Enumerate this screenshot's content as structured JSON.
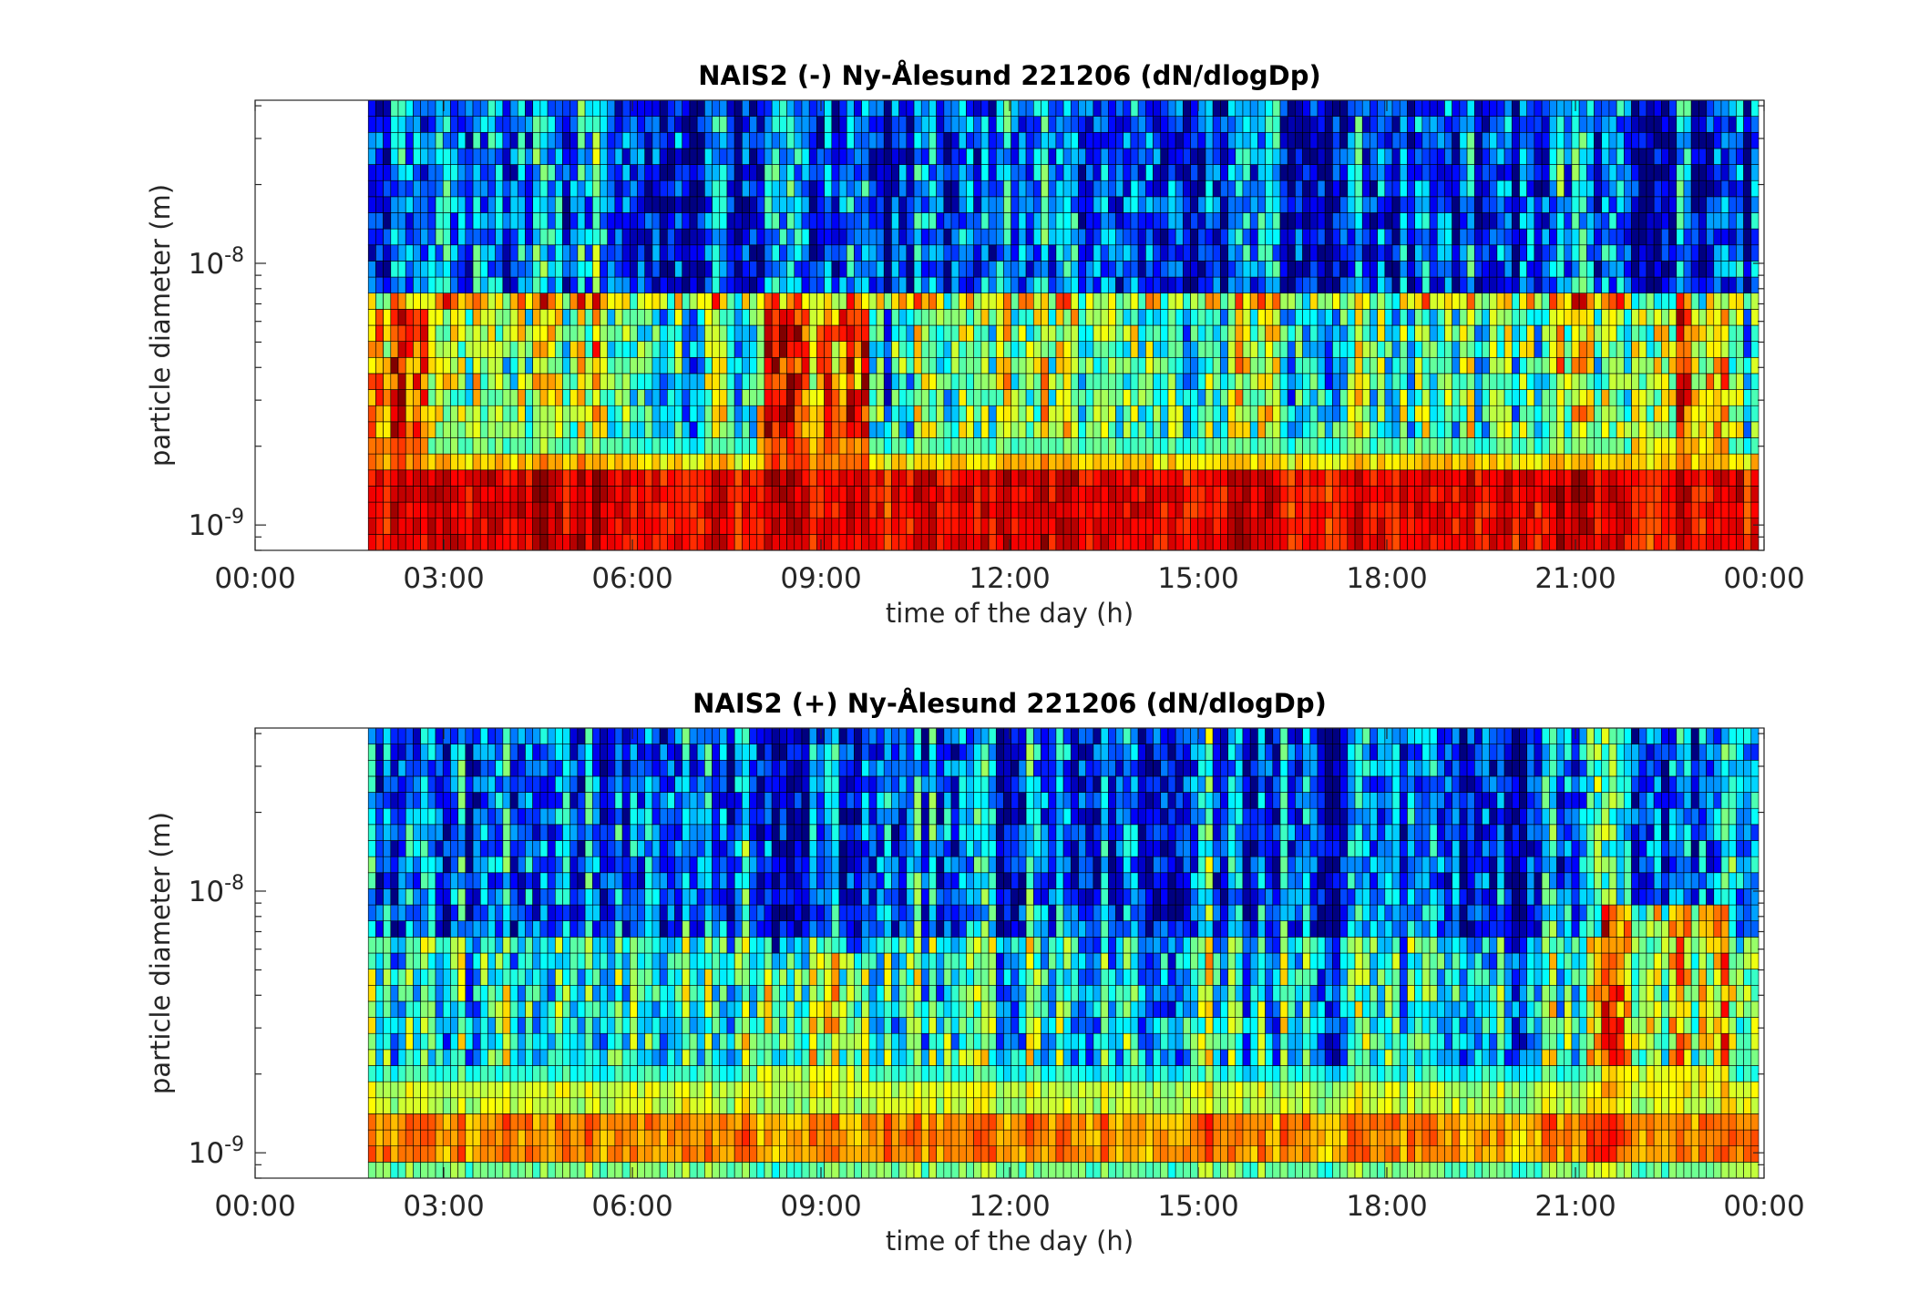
{
  "chart_data": [
    {
      "type": "heatmap",
      "title": "NAIS2 (-) Ny-Ålesund 221206 (dN/dlogDp)",
      "xlabel": "time of the day (h)",
      "ylabel": "particle diameter (m)",
      "x_ticks": [
        "00:00",
        "03:00",
        "06:00",
        "09:00",
        "12:00",
        "15:00",
        "18:00",
        "21:00",
        "00:00"
      ],
      "y_ticks": [
        {
          "value": 1e-09,
          "base": "10",
          "exp": "-9"
        },
        {
          "value": 1e-08,
          "base": "10",
          "exp": "-8"
        }
      ],
      "xlim_hours": [
        0,
        24
      ],
      "ylim": [
        8e-10,
        4.2e-08
      ],
      "y_scale": "log",
      "data_start_hour": 1.8,
      "colormap": "jet",
      "bands": [
        {
          "d_min": 8e-10,
          "d_max": 1.55e-09,
          "level": 0.88
        },
        {
          "d_min": 1.55e-09,
          "d_max": 2e-09,
          "level": 0.66
        },
        {
          "d_min": 2e-09,
          "d_max": 6.5e-09,
          "level": 0.45
        },
        {
          "d_min": 6.5e-09,
          "d_max": 8e-09,
          "level": 0.6
        },
        {
          "d_min": 8e-09,
          "d_max": 4.2e-08,
          "level": 0.18
        }
      ],
      "hot_periods": [
        {
          "start": 8.0,
          "end": 9.8,
          "d_min": 1.5e-09,
          "d_max": 7e-09,
          "level": 0.75
        },
        {
          "start": 1.8,
          "end": 2.8,
          "d_min": 1.5e-09,
          "d_max": 7e-09,
          "level": 0.75
        },
        {
          "start": 22.0,
          "end": 23.5,
          "d_min": 1.5e-09,
          "d_max": 7e-09,
          "level": 0.7
        }
      ]
    },
    {
      "type": "heatmap",
      "title": "NAIS2 (+) Ny-Ålesund 221206 (dN/dlogDp)",
      "xlabel": "time of the day (h)",
      "ylabel": "particle diameter (m)",
      "x_ticks": [
        "00:00",
        "03:00",
        "06:00",
        "09:00",
        "12:00",
        "15:00",
        "18:00",
        "21:00",
        "00:00"
      ],
      "y_ticks": [
        {
          "value": 1e-09,
          "base": "10",
          "exp": "-9"
        },
        {
          "value": 1e-08,
          "base": "10",
          "exp": "-8"
        }
      ],
      "xlim_hours": [
        0,
        24
      ],
      "ylim": [
        8e-10,
        4.2e-08
      ],
      "y_scale": "log",
      "data_start_hour": 1.8,
      "colormap": "jet",
      "bands": [
        {
          "d_min": 8e-10,
          "d_max": 8.8e-10,
          "level": 0.5
        },
        {
          "d_min": 8.8e-10,
          "d_max": 1.5e-09,
          "level": 0.75
        },
        {
          "d_min": 1.5e-09,
          "d_max": 1.75e-09,
          "level": 0.58
        },
        {
          "d_min": 1.75e-09,
          "d_max": 6.5e-09,
          "level": 0.42
        },
        {
          "d_min": 6.5e-09,
          "d_max": 4.2e-08,
          "level": 0.25
        }
      ],
      "hot_periods": [
        {
          "start": 8.0,
          "end": 9.8,
          "d_min": 1.7e-09,
          "d_max": 6e-09,
          "level": 0.62
        },
        {
          "start": 21.5,
          "end": 23.5,
          "d_min": 1.7e-09,
          "d_max": 9e-09,
          "level": 0.62
        }
      ]
    }
  ]
}
